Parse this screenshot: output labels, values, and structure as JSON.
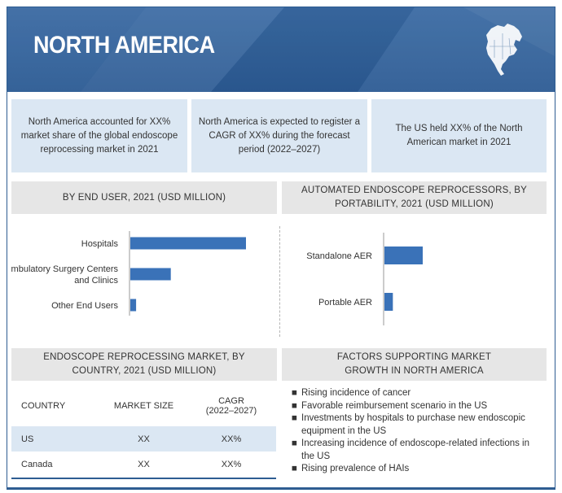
{
  "banner": {
    "title": "NORTH AMERICA",
    "map_icon": "north-america-map-icon"
  },
  "stats": [
    {
      "text": "North America accounted for XX% market share of the global endoscope reprocessing market in 2021"
    },
    {
      "text": "North America is expected to register a CAGR of XX% during the forecast period (2022–2027)"
    },
    {
      "text": "The US held XX% of the North American market in 2021"
    }
  ],
  "sections": {
    "end_user": "BY END USER, 2021 (USD MILLION)",
    "portability": "AUTOMATED ENDOSCOPE REPROCESSORS, BY PORTABILITY, 2021 (USD MILLION)",
    "country": "ENDOSCOPE REPROCESSING MARKET, BY COUNTRY, 2021 (USD MILLION)",
    "factors": "FACTORS SUPPORTING MARKET GROWTH IN NORTH AMERICA"
  },
  "chart_data": [
    {
      "type": "bar",
      "orientation": "horizontal",
      "title": "BY END USER, 2021 (USD MILLION)",
      "categories": [
        "Hospitals",
        "Ambulatory Surgery Centers and Clinics",
        "Other End Users"
      ],
      "category_lines": [
        [
          "Hospitals"
        ],
        [
          "Ambulatory Surgery Centers",
          "and Clinics"
        ],
        [
          "Other End Users"
        ]
      ],
      "values": [
        100,
        35,
        5
      ],
      "value_scale": "relative (no axis shown)",
      "bar_color": "#3a72b8",
      "grid": false
    },
    {
      "type": "bar",
      "orientation": "horizontal",
      "title": "AUTOMATED ENDOSCOPE REPROCESSORS, BY PORTABILITY, 2021 (USD MILLION)",
      "categories": [
        "Standalone AER",
        "Portable AER"
      ],
      "values": [
        100,
        22
      ],
      "value_scale": "relative (no axis shown)",
      "bar_color": "#3a72b8",
      "grid": false
    }
  ],
  "country_table": {
    "headers": [
      "COUNTRY",
      "MARKET SIZE",
      "CAGR",
      "(2022–2027)"
    ],
    "rows": [
      {
        "country": "US",
        "size": "XX",
        "cagr": "XX%"
      },
      {
        "country": "Canada",
        "size": "XX",
        "cagr": "XX%"
      }
    ]
  },
  "factors": {
    "bullet": "■",
    "items": [
      "Rising incidence of cancer",
      "Favorable reimbursement scenario in the US",
      "Investments by hospitals to purchase new endoscopic equipment in the US",
      "Increasing incidence of endoscope-related infections in the US",
      "Rising prevalence of HAIs"
    ]
  },
  "colors": {
    "banner": "#2e5d92",
    "panel": "#dbe7f3",
    "header": "#e6e6e6",
    "bar": "#3a72b8"
  }
}
